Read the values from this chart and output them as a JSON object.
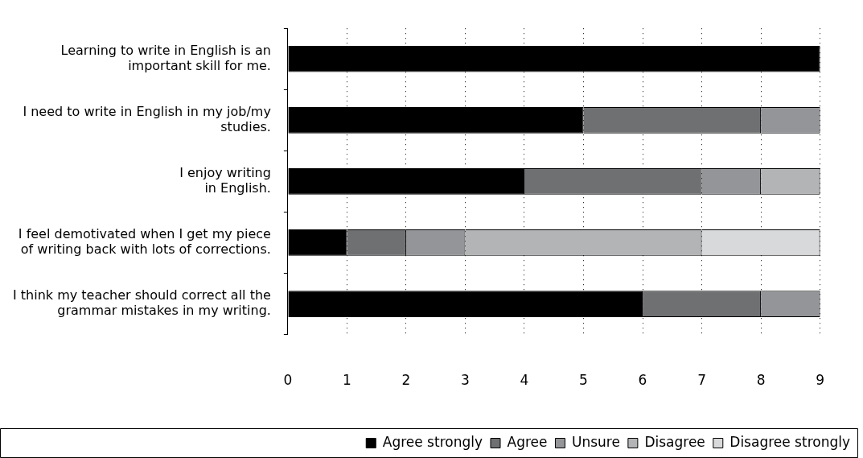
{
  "chart_data": {
    "type": "bar",
    "orientation": "horizontal",
    "stacked": true,
    "categories": [
      "Learning to write in English is an important skill for me.",
      "I need to write in English in my job/my studies.",
      "I enjoy writing in English.",
      "I feel demotivated when I get my piece of writing back with lots of corrections.",
      "I think my teacher should correct all the grammar mistakes in my writing."
    ],
    "series": [
      {
        "name": "Agree strongly",
        "color": "#000000",
        "values": [
          9,
          5,
          4,
          1,
          6
        ]
      },
      {
        "name": "Agree",
        "color": "#6f7072",
        "values": [
          0,
          3,
          3,
          1,
          2
        ]
      },
      {
        "name": "Unsure",
        "color": "#939598",
        "values": [
          0,
          1,
          1,
          1,
          1
        ]
      },
      {
        "name": "Disagree",
        "color": "#b3b4b6",
        "values": [
          0,
          0,
          1,
          4,
          0
        ]
      },
      {
        "name": "Disagree strongly",
        "color": "#d8d9da",
        "values": [
          0,
          0,
          0,
          2,
          0
        ]
      }
    ],
    "xlim": [
      0,
      9
    ],
    "xticks": [
      0,
      1,
      2,
      3,
      4,
      5,
      6,
      7,
      8,
      9
    ],
    "grid": "x",
    "legend": "bottom"
  }
}
